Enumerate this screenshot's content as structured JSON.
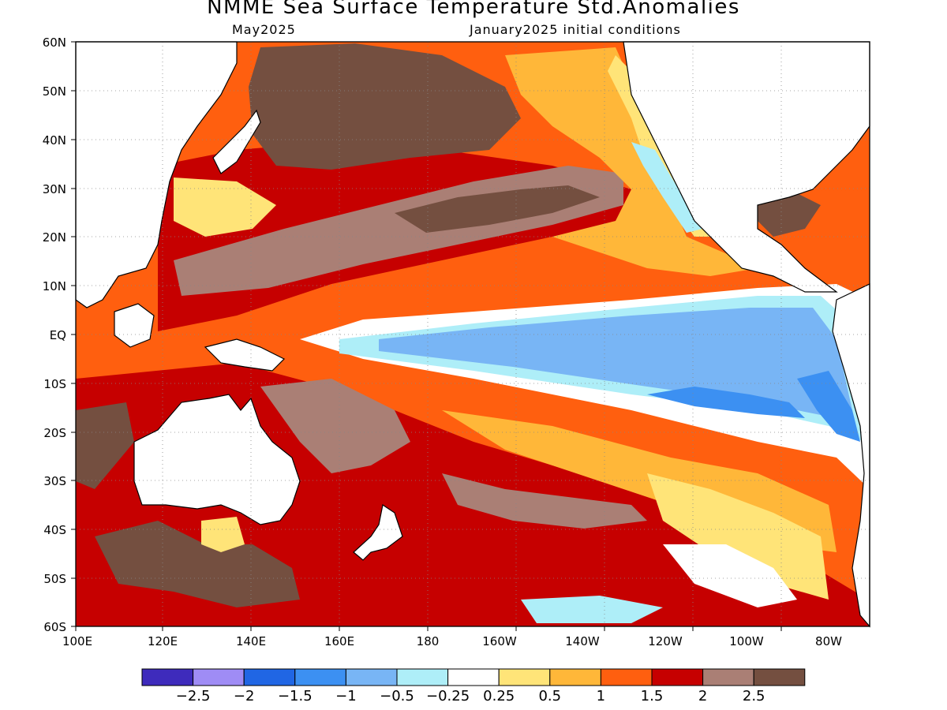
{
  "title": "NMME Sea Surface Temperature Std.Anomalies",
  "subtitle_left": "May2025",
  "subtitle_right": "January2025 initial conditions",
  "y_ticks": [
    "60N",
    "50N",
    "40N",
    "30N",
    "20N",
    "10N",
    "EQ",
    "10S",
    "20S",
    "30S",
    "40S",
    "50S",
    "60S"
  ],
  "x_ticks": [
    "100E",
    "120E",
    "140E",
    "160E",
    "180",
    "160W",
    "140W",
    "120W",
    "100W",
    "80W"
  ],
  "colorbar": {
    "colors": [
      "#3e2bbc",
      "#9f8cf5",
      "#2066e4",
      "#3c90f2",
      "#78b5f5",
      "#aeeef8",
      "#ffffff",
      "#ffe478",
      "#ffb739",
      "#ff5f0f",
      "#c60000",
      "#aa7f75",
      "#744f40"
    ],
    "labels": [
      "-2.5",
      "-2",
      "-1.5",
      "-1",
      "-0.5",
      "-0.25",
      "0.25",
      "0.5",
      "1",
      "1.5",
      "2",
      "2.5"
    ]
  }
}
